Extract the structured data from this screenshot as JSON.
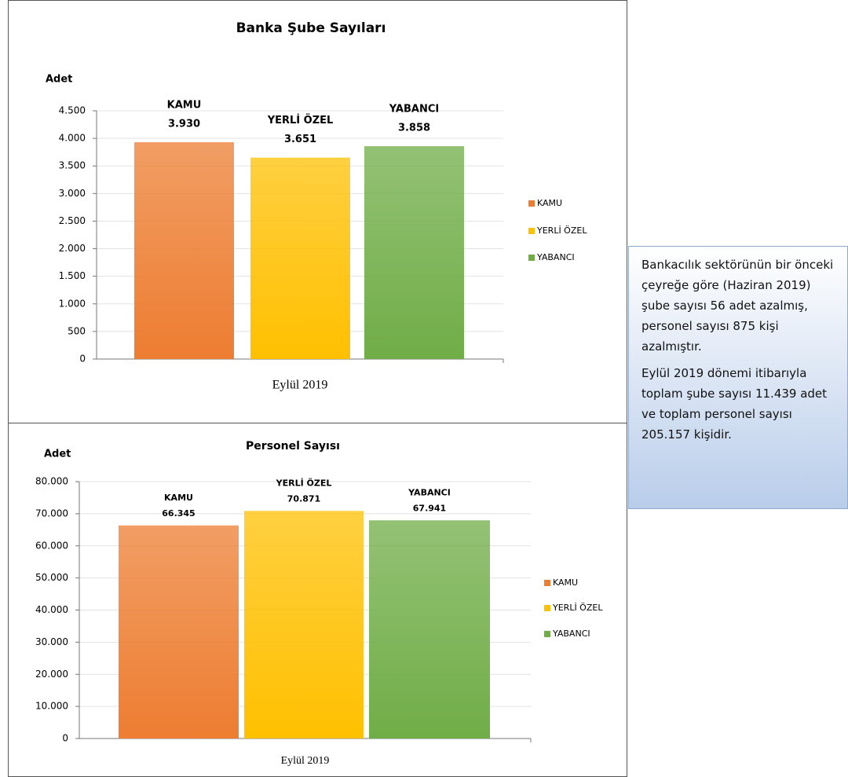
{
  "chart_data": [
    {
      "type": "bar",
      "title": "Banka Şube Sayıları",
      "y_label": "Adet",
      "categories": [
        "Eylül 2019"
      ],
      "series": [
        {
          "name": "KAMU",
          "color": "#ed7d31",
          "values": [
            3930
          ],
          "value_labels": [
            "3.930"
          ]
        },
        {
          "name": "YERLİ ÖZEL",
          "color": "#ffc000",
          "values": [
            3651
          ],
          "value_labels": [
            "3.651"
          ]
        },
        {
          "name": "YABANCI",
          "color": "#70ad47",
          "values": [
            3858
          ],
          "value_labels": [
            "3.858"
          ]
        }
      ],
      "ylim": [
        0,
        4500
      ],
      "yticks": [
        0,
        500,
        {
          "value": 1000,
          "label": "1.000"
        },
        {
          "value": 1500,
          "label": "1.500"
        },
        {
          "value": 2000,
          "label": "2.000"
        },
        {
          "value": 2500,
          "label": "2.500"
        },
        {
          "value": 3000,
          "label": "3.000"
        },
        {
          "value": 3500,
          "label": "3.500"
        },
        {
          "value": 4000,
          "label": "4.000"
        },
        {
          "value": 4500,
          "label": "4.500"
        }
      ],
      "grid": true,
      "legend": "right"
    },
    {
      "type": "bar",
      "title": "Personel Sayısı",
      "y_label": "Adet",
      "categories": [
        "Eylül 2019"
      ],
      "series": [
        {
          "name": "KAMU",
          "color": "#ed7d31",
          "values": [
            66345
          ],
          "value_labels": [
            "66.345"
          ]
        },
        {
          "name": "YERLİ ÖZEL",
          "color": "#ffc000",
          "values": [
            70871
          ],
          "value_labels": [
            "70.871"
          ]
        },
        {
          "name": "YABANCI",
          "color": "#70ad47",
          "values": [
            67941
          ],
          "value_labels": [
            "67.941"
          ]
        }
      ],
      "ylim": [
        0,
        80000
      ],
      "yticks": [
        0,
        {
          "value": 10000,
          "label": "10.000"
        },
        {
          "value": 20000,
          "label": "20.000"
        },
        {
          "value": 30000,
          "label": "30.000"
        },
        {
          "value": 40000,
          "label": "40.000"
        },
        {
          "value": 50000,
          "label": "50.000"
        },
        {
          "value": 60000,
          "label": "60.000"
        },
        {
          "value": 70000,
          "label": "70.000"
        },
        {
          "value": 80000,
          "label": "80.000"
        }
      ],
      "grid": true,
      "legend": "right"
    }
  ],
  "text_box": {
    "paragraphs": [
      "Bankacılık sektörünün bir önceki çeyreğe göre (Haziran 2019) şube sayısı 56 adet azalmış, personel sayısı 875 kişi azalmıştır.",
      "Eylül 2019 dönemi itibarıyla toplam şube sayısı 11.439 adet ve toplam personel sayısı 205.157 kişidir."
    ]
  }
}
